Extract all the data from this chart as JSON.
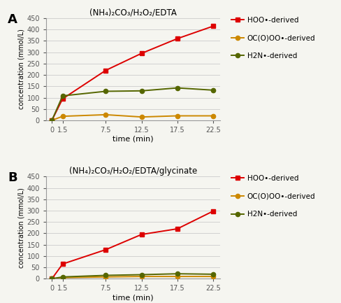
{
  "panel_A": {
    "title": "(NH₄)₂CO₃/H₂O₂/EDTA",
    "label": "A",
    "x": [
      0,
      1.5,
      7.5,
      12.5,
      17.5,
      22.5
    ],
    "HOO": [
      0,
      95,
      220,
      295,
      360,
      415
    ],
    "OC": [
      0,
      18,
      25,
      15,
      20,
      20
    ],
    "H2N": [
      0,
      108,
      128,
      130,
      143,
      133
    ]
  },
  "panel_B": {
    "title": "(NH₄)₂CO₃/H₂O₂/EDTA/glycinate",
    "label": "B",
    "x": [
      0,
      1.5,
      7.5,
      12.5,
      17.5,
      22.5
    ],
    "HOO": [
      0,
      65,
      128,
      195,
      220,
      298
    ],
    "OC": [
      0,
      5,
      8,
      10,
      10,
      10
    ],
    "H2N": [
      0,
      8,
      15,
      18,
      22,
      20
    ]
  },
  "colors": {
    "HOO": "#dd0000",
    "OC": "#cc8800",
    "H2N": "#556600"
  },
  "ylabel": "concentration (mmol/L)",
  "xlabel": "time (min)",
  "ylim": [
    0,
    450
  ],
  "yticks": [
    0,
    50,
    100,
    150,
    200,
    250,
    300,
    350,
    400,
    450
  ],
  "xticks": [
    0,
    1.5,
    7.5,
    12.5,
    17.5,
    22.5
  ],
  "xlim": [
    -0.8,
    23.5
  ],
  "legend_HOO": "HOO•-derived",
  "legend_OC": "OC(O)OO•-derived",
  "legend_H2N": "H2N•-derived",
  "background_color": "#f5f5f0",
  "grid_color": "#cccccc",
  "fig_bg": "#f5f5f0"
}
